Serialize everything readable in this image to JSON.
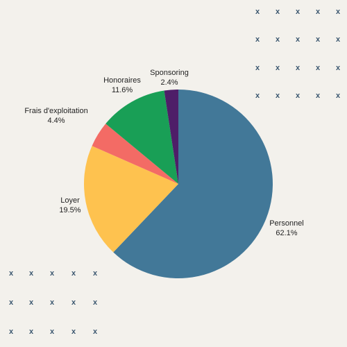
{
  "chart_data": {
    "type": "pie",
    "title": "",
    "start_angle_deg": 0,
    "direction": "clockwise",
    "slices": [
      {
        "label": "Personnel",
        "value": 62.1,
        "value_label": "62.1%",
        "color": "#427898"
      },
      {
        "label": "Loyer",
        "value": 19.5,
        "value_label": "19.5%",
        "color": "#fec24f"
      },
      {
        "label": "Frais d'exploitation",
        "value": 4.4,
        "value_label": "4.4%",
        "color": "#f36b65"
      },
      {
        "label": "Honoraires",
        "value": 11.6,
        "value_label": "11.6%",
        "color": "#199f56"
      },
      {
        "label": "Sponsoring",
        "value": 2.4,
        "value_label": "2.4%",
        "color": "#4e1e68"
      }
    ]
  },
  "decoration": {
    "glyph": "x",
    "color": "#3c5870",
    "background": "#f3f1ec"
  }
}
